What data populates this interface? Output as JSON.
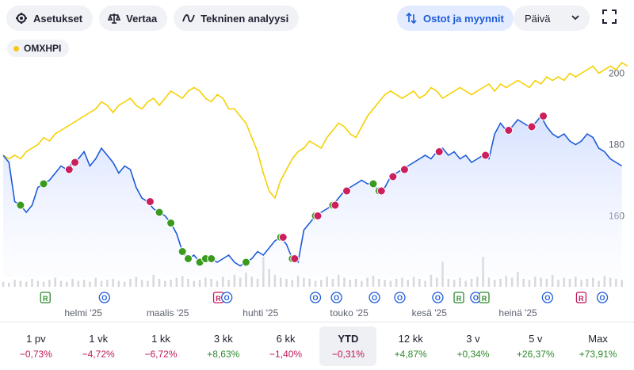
{
  "toolbar": {
    "settings_label": "Asetukset",
    "compare_label": "Vertaa",
    "technical_label": "Tekninen analyysi",
    "trades_label": "Ostot ja myynnit",
    "interval_value": "Päivä"
  },
  "legend": {
    "label": "OMXHPI",
    "color": "#f5c518"
  },
  "colors": {
    "price_line": "#1d5bd8",
    "comparison_line": "#f5d000",
    "buy": "#3a9a1e",
    "sell": "#cc1f5e"
  },
  "chart_data": {
    "type": "line",
    "y_axis_ticks": [
      160,
      180,
      200
    ],
    "ylim": [
      145,
      205
    ],
    "x_month_labels": [
      {
        "label": "helmi '25",
        "at": 19
      },
      {
        "label": "maalis '25",
        "at": 39
      },
      {
        "label": "huhti '25",
        "at": 61
      },
      {
        "label": "touko '25",
        "at": 82
      },
      {
        "label": "kesä '25",
        "at": 101
      },
      {
        "label": "heinä '25",
        "at": 122
      }
    ],
    "series": [
      {
        "values": [
          177,
          175,
          164,
          163,
          161,
          163,
          168,
          169,
          170,
          172,
          174,
          173,
          175,
          176,
          178,
          174,
          176,
          179,
          177,
          175,
          172,
          174,
          173,
          168,
          165,
          164,
          162,
          161,
          160,
          158,
          155,
          150,
          148,
          149,
          147,
          148,
          148,
          147,
          148,
          149,
          147,
          146,
          147,
          148,
          150,
          149,
          151,
          153,
          154,
          152,
          148,
          147,
          156,
          158,
          160,
          161,
          162,
          163,
          165,
          167,
          168,
          169,
          170,
          169,
          169,
          167,
          168,
          171,
          172,
          173,
          174,
          175,
          176,
          177,
          176,
          178,
          179,
          177,
          178,
          176,
          177,
          175,
          176,
          177,
          176,
          183,
          186,
          184,
          185,
          187,
          186,
          185,
          186,
          188,
          185,
          183,
          182,
          183,
          181,
          180,
          181,
          183,
          182,
          179,
          178,
          176,
          175,
          174
        ],
        "color": "#1d5bd8"
      },
      {
        "name": "OMXHPI",
        "values": [
          177,
          176,
          177,
          176,
          178,
          179,
          180,
          182,
          181,
          183,
          184,
          185,
          186,
          187,
          188,
          189,
          190,
          192,
          191,
          189,
          191,
          192,
          193,
          191,
          190,
          192,
          193,
          191,
          193,
          195,
          194,
          193,
          195,
          196,
          195,
          193,
          192,
          194,
          193,
          190,
          190,
          188,
          186,
          182,
          178,
          172,
          167,
          165,
          170,
          173,
          176,
          178,
          179,
          181,
          180,
          179,
          182,
          184,
          186,
          185,
          183,
          182,
          185,
          188,
          190,
          192,
          194,
          195,
          194,
          193,
          194,
          195,
          193,
          194,
          196,
          195,
          193,
          194,
          195,
          196,
          195,
          194,
          195,
          196,
          197,
          195,
          197,
          196,
          197,
          198,
          197,
          196,
          198,
          197,
          199,
          198,
          199,
          198,
          200,
          199,
          200,
          201,
          202,
          200,
          201,
          202,
          201,
          203,
          202
        ],
        "color": "#f5d000"
      }
    ],
    "volume": [
      5,
      4,
      7,
      6,
      5,
      8,
      6,
      5,
      7,
      9,
      6,
      5,
      8,
      6,
      7,
      5,
      9,
      6,
      7,
      8,
      6,
      5,
      8,
      10,
      7,
      6,
      12,
      8,
      6,
      7,
      9,
      11,
      8,
      6,
      7,
      9,
      8,
      6,
      10,
      7,
      12,
      9,
      14,
      10,
      8,
      30,
      18,
      12,
      9,
      8,
      7,
      11,
      9,
      8,
      6,
      7,
      10,
      8,
      12,
      9,
      7,
      8,
      6,
      9,
      11,
      8,
      7,
      6,
      8,
      9,
      7,
      10,
      8,
      6,
      12,
      9,
      25,
      8,
      7,
      9,
      6,
      8,
      10,
      30,
      9,
      7,
      8,
      11,
      9,
      15,
      8,
      7,
      10,
      9,
      8,
      12,
      7,
      9,
      8,
      10,
      7,
      8,
      9,
      6,
      11,
      9,
      8,
      7
    ],
    "buys": [
      3,
      7,
      27,
      29,
      31,
      32,
      34,
      35,
      36,
      42,
      48,
      50,
      54,
      57,
      64,
      65
    ],
    "sells": [
      11,
      12,
      25,
      48,
      50,
      54,
      57,
      59,
      65,
      67,
      69,
      75,
      83,
      87,
      91,
      93
    ],
    "event_markers": [
      {
        "type": "R",
        "at": 10
      },
      {
        "type": "O",
        "at": 24
      },
      {
        "type": "R",
        "at": 51
      },
      {
        "type": "O",
        "at": 53
      },
      {
        "type": "O",
        "at": 74
      },
      {
        "type": "O",
        "at": 79
      },
      {
        "type": "O",
        "at": 88
      },
      {
        "type": "O",
        "at": 94
      },
      {
        "type": "O",
        "at": 103
      },
      {
        "type": "R",
        "at": 108
      },
      {
        "type": "O",
        "at": 112
      },
      {
        "type": "R",
        "at": 114
      },
      {
        "type": "O",
        "at": 129
      },
      {
        "type": "R",
        "at": 137
      },
      {
        "type": "O",
        "at": 142
      }
    ]
  },
  "periods": [
    {
      "label": "1 pv",
      "change": "−0,73%",
      "trend": "neg"
    },
    {
      "label": "1 vk",
      "change": "−4,72%",
      "trend": "neg"
    },
    {
      "label": "1 kk",
      "change": "−6,72%",
      "trend": "neg"
    },
    {
      "label": "3 kk",
      "change": "+8,63%",
      "trend": "pos"
    },
    {
      "label": "6 kk",
      "change": "−1,40%",
      "trend": "neg"
    },
    {
      "label": "YTD",
      "change": "−0,31%",
      "trend": "neg",
      "active": true
    },
    {
      "label": "12 kk",
      "change": "+4,87%",
      "trend": "pos"
    },
    {
      "label": "3 v",
      "change": "+0,34%",
      "trend": "pos"
    },
    {
      "label": "5 v",
      "change": "+26,37%",
      "trend": "pos"
    },
    {
      "label": "Max",
      "change": "+73,91%",
      "trend": "pos"
    }
  ]
}
